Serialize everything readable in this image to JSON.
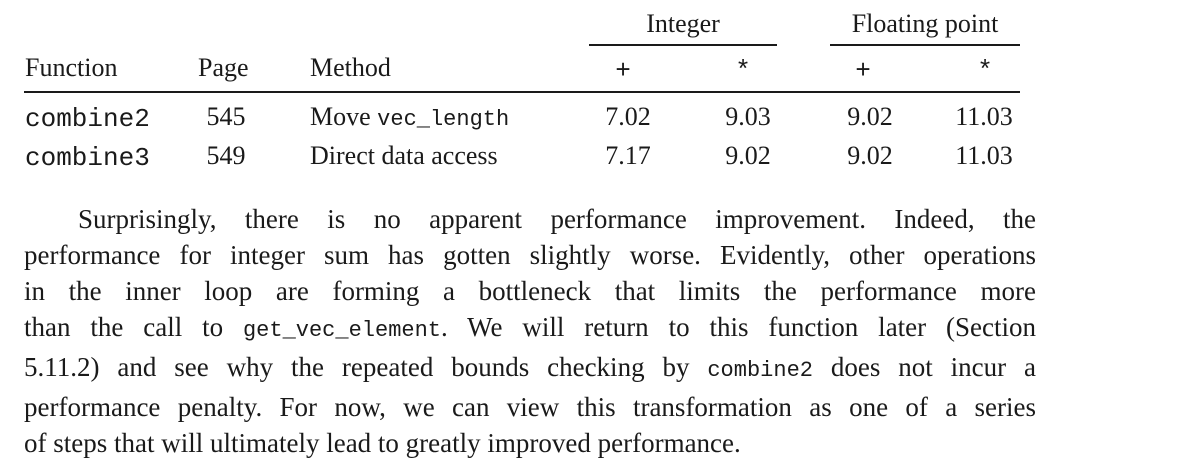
{
  "table": {
    "group_headers": {
      "integer": "Integer",
      "floating_point": "Floating point"
    },
    "columns": {
      "function": "Function",
      "page": "Page",
      "method": "Method",
      "int_add": "+",
      "int_mul": "*",
      "fp_add": "+",
      "fp_mul": "*"
    },
    "rows": [
      {
        "function": "combine2",
        "page": "545",
        "method_text": "Move ",
        "method_code": "vec_length",
        "int_add": "7.02",
        "int_mul": "9.03",
        "fp_add": "9.02",
        "fp_mul": "11.03"
      },
      {
        "function": "combine3",
        "page": "549",
        "method_text": "Direct data access",
        "method_code": "",
        "int_add": "7.17",
        "int_mul": "9.02",
        "fp_add": "9.02",
        "fp_mul": "11.03"
      }
    ]
  },
  "paragraph": {
    "line1": "Surprisingly, there is no apparent performance improvement. Indeed, the",
    "line2": "performance for integer sum has gotten slightly worse. Evidently, other operations",
    "line3": "in the inner loop are forming a bottleneck that limits the performance more",
    "line4_a": "than the call to ",
    "line4_code": "get_vec_element",
    "line4_b": ". We will return to this function later (Section",
    "line5_a": "5.11.2) and see why the repeated bounds checking by ",
    "line5_code": "combine2",
    "line5_b": " does not incur a",
    "line6": "performance penalty. For now, we can view this transformation as one of a series",
    "line7": "of steps that will ultimately lead to greatly improved performance."
  }
}
